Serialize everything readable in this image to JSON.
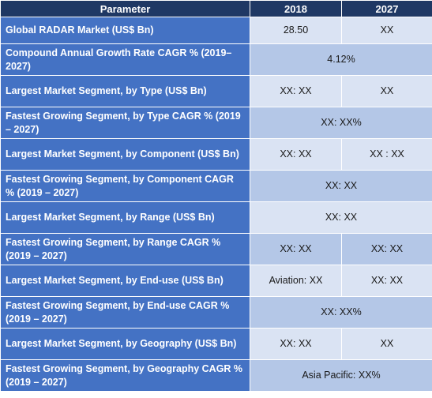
{
  "header": {
    "parameter": "Parameter",
    "y2018": "2018",
    "y2027": "2027"
  },
  "rows": [
    {
      "label": "Global RADAR Market (US$ Bn)",
      "v2018": "28.50",
      "v2027": "XX"
    },
    {
      "label": "Compound Annual Growth Rate CAGR % (2019–2027)",
      "merged": "4.12%"
    },
    {
      "label": "Largest Market Segment, by Type (US$ Bn)",
      "v2018": "XX: XX",
      "v2027": "XX"
    },
    {
      "label": "Fastest Growing Segment, by Type CAGR % (2019 – 2027)",
      "merged": "XX: XX%"
    },
    {
      "label": "Largest Market Segment, by Component (US$ Bn)",
      "v2018": "XX: XX",
      "v2027": "XX : XX"
    },
    {
      "label": "Fastest Growing Segment, by Component CAGR % (2019 – 2027)",
      "merged": "XX: XX"
    },
    {
      "label": "Largest Market Segment, by Range (US$ Bn)",
      "merged": "XX: XX"
    },
    {
      "label": "Fastest Growing Segment, by Range CAGR % (2019 – 2027)",
      "v2018": "XX: XX",
      "v2027": "XX: XX"
    },
    {
      "label": "Largest Market Segment, by End-use (US$ Bn)",
      "v2018": "Aviation: XX",
      "v2027": "XX: XX"
    },
    {
      "label": "Fastest Growing Segment, by End-use CAGR % (2019 – 2027)",
      "merged": "XX: XX%"
    },
    {
      "label": "Largest Market Segment, by Geography (US$ Bn)",
      "v2018": "XX: XX",
      "v2027": "XX"
    },
    {
      "label": "Fastest Growing Segment, by Geography CAGR % (2019 – 2027)",
      "merged": "Asia Pacific: XX%"
    }
  ]
}
